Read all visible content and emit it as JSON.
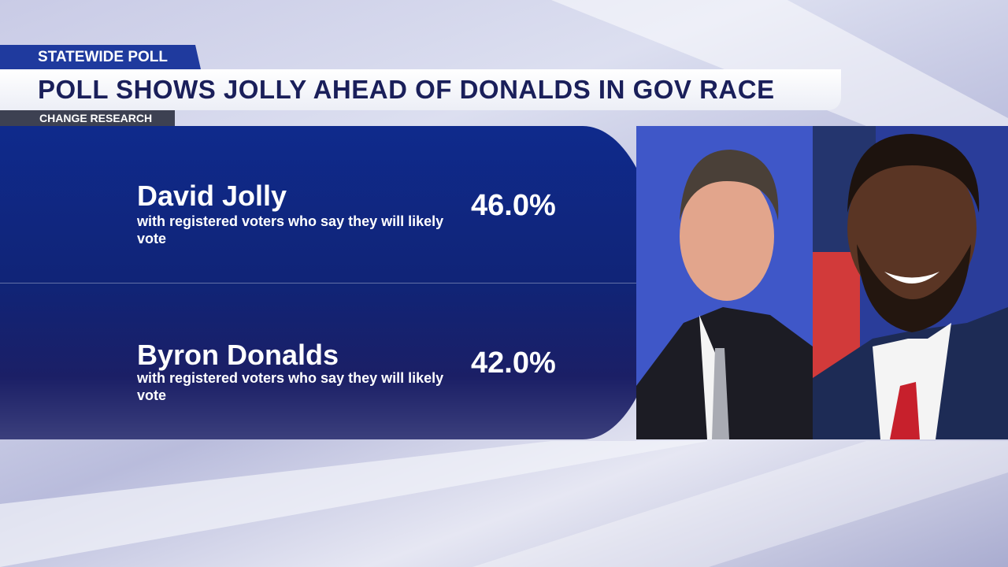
{
  "header": {
    "tag": "STATEWIDE POLL",
    "title": "POLL SHOWS JOLLY AHEAD OF DONALDS IN GOV RACE",
    "source": "CHANGE RESEARCH"
  },
  "candidates": [
    {
      "name": "David Jolly",
      "note": "with registered voters who say they will likely vote",
      "share": "46.0%"
    },
    {
      "name": "Byron Donalds",
      "note": "with registered voters who say they will likely vote",
      "share": "42.0%"
    }
  ]
}
